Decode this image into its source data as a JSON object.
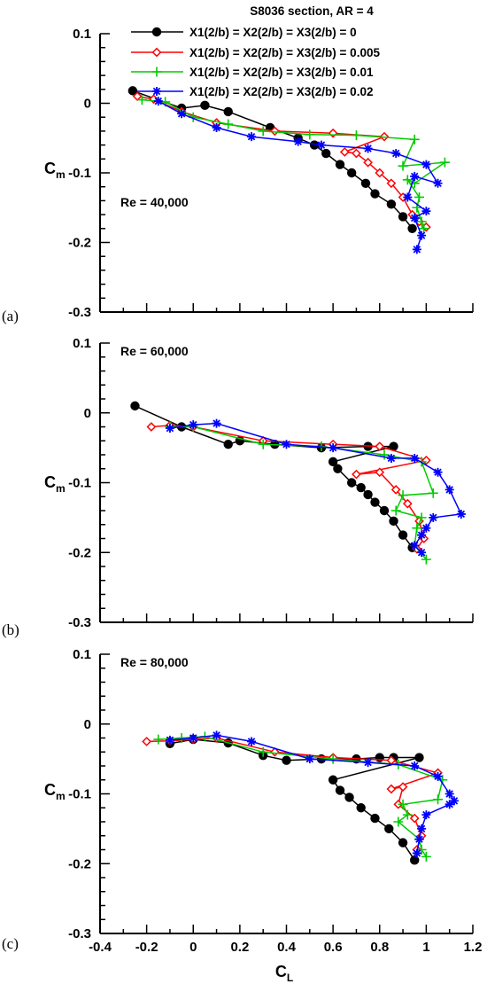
{
  "legend": {
    "title": "S8036 section, AR = 4",
    "entries": [
      {
        "label": "X1(2/b) = X2(2/b) = X3(2/b) = 0",
        "color": "#000000",
        "marker": "circle"
      },
      {
        "label": "X1(2/b) = X2(2/b) = X3(2/b) = 0.005",
        "color": "#ff0000",
        "marker": "diamond"
      },
      {
        "label": "X1(2/b) = X2(2/b) = X3(2/b) = 0.01",
        "color": "#00cc00",
        "marker": "plus"
      },
      {
        "label": "X1(2/b) = X2(2/b) = X3(2/b) = 0.02",
        "color": "#0000ff",
        "marker": "star"
      }
    ]
  },
  "xlabel": {
    "main": "C",
    "sub": "L"
  },
  "ylabel": {
    "main": "C",
    "sub": "m"
  },
  "chart_data": [
    {
      "type": "line",
      "panel_label": "(a)",
      "annotation": "Re = 40,000",
      "xlim": [
        -0.4,
        1.2
      ],
      "ylim": [
        -0.3,
        0.1
      ],
      "x_ticks": [],
      "y_ticks": [
        "0.1",
        "0",
        "-0.1",
        "-0.2",
        "-0.3"
      ],
      "series": [
        {
          "name": "X1(2/b) = X2(2/b) = X3(2/b) = 0",
          "x": [
            -0.26,
            -0.05,
            0.05,
            0.15,
            0.33,
            0.45,
            0.52,
            0.57,
            0.63,
            0.68,
            0.74,
            0.78,
            0.85,
            0.9,
            0.94
          ],
          "y": [
            0.018,
            -0.007,
            -0.003,
            -0.012,
            -0.035,
            -0.05,
            -0.06,
            -0.072,
            -0.088,
            -0.1,
            -0.115,
            -0.13,
            -0.145,
            -0.163,
            -0.18
          ]
        },
        {
          "name": "X1(2/b) = X2(2/b) = X3(2/b) = 0.005",
          "x": [
            -0.24,
            -0.17,
            -0.05,
            0.1,
            0.35,
            0.6,
            0.82,
            0.65,
            0.7,
            0.75,
            0.8,
            0.85,
            0.9,
            0.94,
            0.97,
            1.0
          ],
          "y": [
            0.01,
            0.006,
            -0.012,
            -0.028,
            -0.04,
            -0.043,
            -0.048,
            -0.07,
            -0.072,
            -0.085,
            -0.1,
            -0.115,
            -0.135,
            -0.16,
            -0.17,
            -0.178
          ]
        },
        {
          "name": "X1(2/b) = X2(2/b) = X3(2/b) = 0.01",
          "x": [
            -0.22,
            -0.12,
            0.0,
            0.15,
            0.3,
            0.5,
            0.7,
            0.95,
            0.9,
            1.08,
            0.95,
            0.92,
            0.97,
            0.96,
            0.98,
            0.99
          ],
          "y": [
            0.005,
            0.002,
            -0.02,
            -0.03,
            -0.04,
            -0.045,
            -0.046,
            -0.052,
            -0.09,
            -0.085,
            -0.115,
            -0.11,
            -0.135,
            -0.15,
            -0.17,
            -0.18
          ]
        },
        {
          "name": "X1(2/b) = X2(2/b) = X3(2/b) = 0.02",
          "x": [
            -0.15,
            -0.05,
            0.1,
            0.25,
            0.45,
            0.55,
            0.75,
            0.87,
            1.0,
            1.05,
            0.95,
            0.92,
            1.0,
            0.95,
            0.98,
            0.96
          ],
          "y": [
            0.003,
            -0.015,
            -0.035,
            -0.048,
            -0.055,
            -0.06,
            -0.065,
            -0.072,
            -0.088,
            -0.115,
            -0.105,
            -0.135,
            -0.155,
            -0.165,
            -0.19,
            -0.21
          ]
        }
      ]
    },
    {
      "type": "line",
      "panel_label": "(b)",
      "annotation": "Re = 60,000",
      "xlim": [
        -0.4,
        1.2
      ],
      "ylim": [
        -0.3,
        0.1
      ],
      "x_ticks": [],
      "y_ticks": [
        "0.1",
        "0",
        "-0.1",
        "-0.2",
        "-0.3"
      ],
      "series": [
        {
          "name": "X1(2/b) = X2(2/b) = X3(2/b) = 0",
          "x": [
            -0.25,
            -0.05,
            0.15,
            0.2,
            0.35,
            0.55,
            0.75,
            0.86,
            0.6,
            0.62,
            0.68,
            0.72,
            0.75,
            0.78,
            0.82,
            0.86,
            0.9,
            0.94
          ],
          "y": [
            0.01,
            -0.02,
            -0.045,
            -0.04,
            -0.045,
            -0.05,
            -0.048,
            -0.048,
            -0.07,
            -0.08,
            -0.1,
            -0.107,
            -0.117,
            -0.128,
            -0.14,
            -0.155,
            -0.175,
            -0.193
          ]
        },
        {
          "name": "X1(2/b) = X2(2/b) = X3(2/b) = 0.005",
          "x": [
            -0.18,
            -0.1,
            0.0,
            0.3,
            0.6,
            0.8,
            1.0,
            0.7,
            0.8,
            0.87,
            0.92,
            0.97,
            0.99,
            0.96
          ],
          "y": [
            -0.02,
            -0.018,
            -0.02,
            -0.04,
            -0.045,
            -0.048,
            -0.068,
            -0.088,
            -0.085,
            -0.11,
            -0.13,
            -0.155,
            -0.18,
            -0.195
          ]
        },
        {
          "name": "X1(2/b) = X2(2/b) = X3(2/b) = 0.01",
          "x": [
            -0.1,
            0.0,
            0.3,
            0.55,
            0.82,
            0.98,
            1.03,
            0.9,
            0.87,
            0.98,
            0.96,
            0.95,
            1.0
          ],
          "y": [
            -0.02,
            -0.02,
            -0.045,
            -0.048,
            -0.06,
            -0.07,
            -0.115,
            -0.118,
            -0.14,
            -0.15,
            -0.165,
            -0.19,
            -0.21
          ]
        },
        {
          "name": "X1(2/b) = X2(2/b) = X3(2/b) = 0.02",
          "x": [
            -0.1,
            0.0,
            0.1,
            0.4,
            0.6,
            0.85,
            0.95,
            1.05,
            1.1,
            1.15,
            1.03,
            1.0,
            0.98,
            0.95,
            0.98
          ],
          "y": [
            -0.022,
            -0.017,
            -0.015,
            -0.045,
            -0.05,
            -0.065,
            -0.065,
            -0.085,
            -0.11,
            -0.145,
            -0.15,
            -0.165,
            -0.175,
            -0.19,
            -0.2
          ]
        }
      ]
    },
    {
      "type": "line",
      "panel_label": "(c)",
      "annotation": "Re = 80,000",
      "xlim": [
        -0.4,
        1.2
      ],
      "ylim": [
        -0.3,
        0.1
      ],
      "x_ticks": [
        "-0.4",
        "-0.2",
        "0",
        "0.2",
        "0.4",
        "0.6",
        "0.8",
        "1",
        "1.2"
      ],
      "y_ticks": [
        "0.1",
        "0",
        "-0.1",
        "-0.2",
        "-0.3"
      ],
      "series": [
        {
          "name": "X1(2/b) = X2(2/b) = X3(2/b) = 0",
          "x": [
            -0.1,
            0.0,
            0.15,
            0.3,
            0.4,
            0.55,
            0.7,
            0.8,
            0.86,
            0.97,
            0.6,
            0.63,
            0.67,
            0.72,
            0.78,
            0.84,
            0.9,
            0.95
          ],
          "y": [
            -0.028,
            -0.022,
            -0.027,
            -0.045,
            -0.052,
            -0.05,
            -0.05,
            -0.048,
            -0.048,
            -0.048,
            -0.08,
            -0.095,
            -0.105,
            -0.12,
            -0.135,
            -0.15,
            -0.17,
            -0.195
          ]
        },
        {
          "name": "X1(2/b) = X2(2/b) = X3(2/b) = 0.005",
          "x": [
            -0.2,
            -0.1,
            0.0,
            0.1,
            0.35,
            0.6,
            0.85,
            1.05,
            0.85,
            0.9,
            0.88,
            0.95,
            0.98,
            0.96
          ],
          "y": [
            -0.025,
            -0.024,
            -0.022,
            -0.02,
            -0.04,
            -0.048,
            -0.052,
            -0.07,
            -0.093,
            -0.09,
            -0.115,
            -0.135,
            -0.16,
            -0.18
          ]
        },
        {
          "name": "X1(2/b) = X2(2/b) = X3(2/b) = 0.01",
          "x": [
            -0.15,
            -0.05,
            0.05,
            0.3,
            0.6,
            0.88,
            1.07,
            1.05,
            0.9,
            0.92,
            0.88,
            0.97,
            0.98,
            1.0
          ],
          "y": [
            -0.022,
            -0.02,
            -0.018,
            -0.04,
            -0.05,
            -0.058,
            -0.08,
            -0.108,
            -0.115,
            -0.13,
            -0.14,
            -0.165,
            -0.18,
            -0.19
          ]
        },
        {
          "name": "X1(2/b) = X2(2/b) = X3(2/b) = 0.02",
          "x": [
            -0.1,
            0.0,
            0.1,
            0.25,
            0.5,
            0.75,
            0.95,
            1.05,
            1.1,
            1.12,
            1.1,
            1.0,
            0.98,
            0.97,
            0.96
          ],
          "y": [
            -0.023,
            -0.02,
            -0.016,
            -0.025,
            -0.05,
            -0.055,
            -0.06,
            -0.075,
            -0.1,
            -0.11,
            -0.115,
            -0.13,
            -0.15,
            -0.165,
            -0.185
          ]
        }
      ]
    }
  ]
}
